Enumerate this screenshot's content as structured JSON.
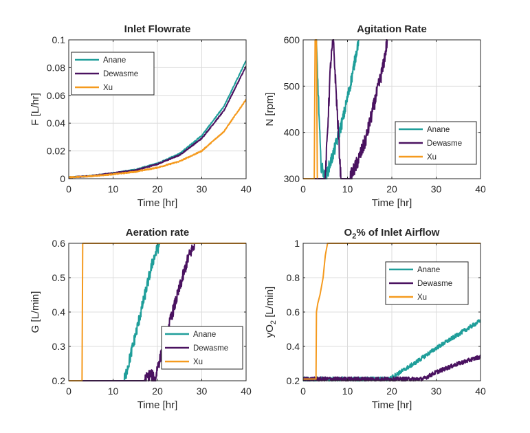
{
  "figure": {
    "colors": {
      "Anane": "#1f9e9a",
      "Dewasme": "#4a1260",
      "Xu": "#f59a1e"
    }
  },
  "chart_data": [
    {
      "type": "line",
      "title": "Inlet Flowrate",
      "xlabel": "Time [hr]",
      "ylabel": "F [L/hr]",
      "xlim": [
        0,
        40
      ],
      "ylim": [
        0,
        0.1
      ],
      "xticks": [
        0,
        10,
        20,
        30,
        40
      ],
      "yticks": [
        0,
        0.02,
        0.04,
        0.06,
        0.08,
        0.1
      ],
      "xtick_labels": [
        "0",
        "10",
        "20",
        "30",
        "40"
      ],
      "ytick_labels": [
        "0",
        "0.02",
        "0.04",
        "0.06",
        "0.08",
        "0.1"
      ],
      "grid": true,
      "legend": "top-left",
      "series": [
        {
          "name": "Anane",
          "color": "#1f9e9a",
          "noise": 0.0004,
          "x": [
            0,
            5,
            10,
            15,
            20,
            25,
            30,
            35,
            40
          ],
          "y": [
            0.001,
            0.002,
            0.004,
            0.0065,
            0.011,
            0.018,
            0.031,
            0.052,
            0.085
          ]
        },
        {
          "name": "Dewasme",
          "color": "#4a1260",
          "noise": 0.0004,
          "x": [
            0,
            5,
            10,
            15,
            20,
            25,
            30,
            35,
            40
          ],
          "y": [
            0.001,
            0.002,
            0.004,
            0.006,
            0.0105,
            0.017,
            0.029,
            0.049,
            0.081
          ]
        },
        {
          "name": "Xu",
          "color": "#f59a1e",
          "noise": 0.0004,
          "x": [
            0,
            5,
            10,
            15,
            20,
            25,
            30,
            35,
            40
          ],
          "y": [
            0.001,
            0.0018,
            0.0032,
            0.005,
            0.008,
            0.0125,
            0.02,
            0.034,
            0.057
          ]
        }
      ]
    },
    {
      "type": "line",
      "title": "Agitation Rate",
      "xlabel": "Time [hr]",
      "ylabel": "N [rpm]",
      "xlim": [
        0,
        40
      ],
      "ylim": [
        300,
        600
      ],
      "xticks": [
        0,
        10,
        20,
        30,
        40
      ],
      "yticks": [
        300,
        400,
        500,
        600
      ],
      "xtick_labels": [
        "0",
        "10",
        "20",
        "30",
        "40"
      ],
      "ytick_labels": [
        "300",
        "400",
        "500",
        "600"
      ],
      "grid": true,
      "legend": "bottom-right",
      "series": [
        {
          "name": "Anane",
          "color": "#1f9e9a",
          "noise": 14,
          "x": [
            2.8,
            3.0,
            4.0,
            5.0,
            7.0,
            9.0,
            11.0,
            12.5
          ],
          "y": [
            600,
            590,
            330,
            300,
            360,
            430,
            520,
            600
          ]
        },
        {
          "name": "Dewasme",
          "color": "#4a1260",
          "noise": 16,
          "x": [
            0,
            3.0,
            3.2,
            5.0,
            6.2,
            6.8,
            8.5,
            10.0,
            10.5,
            12.0,
            14.0,
            16.0,
            18.0,
            19.0
          ],
          "y": [
            300,
            300,
            300,
            300,
            550,
            600,
            300,
            300,
            300,
            330,
            380,
            460,
            540,
            600
          ]
        },
        {
          "name": "Xu",
          "color": "#f59a1e",
          "noise": 0,
          "x": [
            0,
            2.5,
            2.7,
            3.0,
            3.2
          ],
          "y": [
            300,
            300,
            600,
            600,
            300
          ]
        }
      ]
    },
    {
      "type": "line",
      "title": "Aeration rate",
      "xlabel": "Time [hr]",
      "ylabel": "G [L/min]",
      "xlim": [
        0,
        40
      ],
      "ylim": [
        0.2,
        0.6
      ],
      "xticks": [
        0,
        10,
        20,
        30,
        40
      ],
      "yticks": [
        0.2,
        0.3,
        0.4,
        0.5,
        0.6
      ],
      "xtick_labels": [
        "0",
        "10",
        "20",
        "30",
        "40"
      ],
      "ytick_labels": [
        "0.2",
        "0.3",
        "0.4",
        "0.5",
        "0.6"
      ],
      "grid": true,
      "legend": "bottom-right",
      "series": [
        {
          "name": "Anane",
          "color": "#1f9e9a",
          "noise": 0.018,
          "x": [
            0,
            12.5,
            13.5,
            15.0,
            17.0,
            19.0,
            20.5,
            21.0,
            40
          ],
          "y": [
            0.2,
            0.2,
            0.25,
            0.33,
            0.44,
            0.55,
            0.6,
            0.6,
            0.6
          ]
        },
        {
          "name": "Dewasme",
          "color": "#4a1260",
          "noise": 0.018,
          "x": [
            0,
            17.0,
            18.5,
            19.5,
            20.0,
            21.5,
            23.0,
            25.0,
            27.0,
            28.5,
            29.0,
            40
          ],
          "y": [
            0.2,
            0.2,
            0.22,
            0.2,
            0.24,
            0.3,
            0.38,
            0.47,
            0.56,
            0.6,
            0.6,
            0.6
          ]
        },
        {
          "name": "Xu",
          "color": "#f59a1e",
          "noise": 0,
          "x": [
            0,
            3.0,
            3.15,
            40
          ],
          "y": [
            0.2,
            0.2,
            0.6,
            0.6
          ]
        }
      ]
    },
    {
      "type": "line",
      "title_main": "O",
      "title_sub": "2",
      "title_rest": "% of Inlet Airflow",
      "xlabel": "Time [hr]",
      "ylabel_main": "yO",
      "ylabel_sub": "2",
      "ylabel_rest": " [L/min]",
      "xlim": [
        0,
        40
      ],
      "ylim": [
        0.2,
        1.0
      ],
      "xticks": [
        0,
        10,
        20,
        30,
        40
      ],
      "yticks": [
        0.2,
        0.4,
        0.6,
        0.8,
        1.0
      ],
      "xtick_labels": [
        "0",
        "10",
        "20",
        "30",
        "40"
      ],
      "ytick_labels": [
        "0.2",
        "0.4",
        "0.6",
        "0.8",
        "1"
      ],
      "grid": true,
      "legend": "center-right",
      "series": [
        {
          "name": "Anane",
          "color": "#1f9e9a",
          "noise": 0.012,
          "x": [
            0,
            3.0,
            19.5,
            20.0,
            25.0,
            30.0,
            35.0,
            40.0
          ],
          "y": [
            0.21,
            0.21,
            0.21,
            0.22,
            0.3,
            0.39,
            0.47,
            0.55
          ]
        },
        {
          "name": "Dewasme",
          "color": "#4a1260",
          "noise": 0.012,
          "x": [
            0,
            3.0,
            26.0,
            27.0,
            30.0,
            35.0,
            40.0
          ],
          "y": [
            0.21,
            0.21,
            0.21,
            0.21,
            0.25,
            0.3,
            0.34
          ]
        },
        {
          "name": "Xu",
          "color": "#f59a1e",
          "noise": 0,
          "x": [
            0,
            2.9,
            3.0,
            3.3,
            3.8,
            4.5,
            5.0,
            5.5,
            40
          ],
          "y": [
            0.21,
            0.21,
            0.6,
            0.65,
            0.7,
            0.8,
            0.93,
            1.0,
            1.0
          ]
        }
      ]
    }
  ]
}
